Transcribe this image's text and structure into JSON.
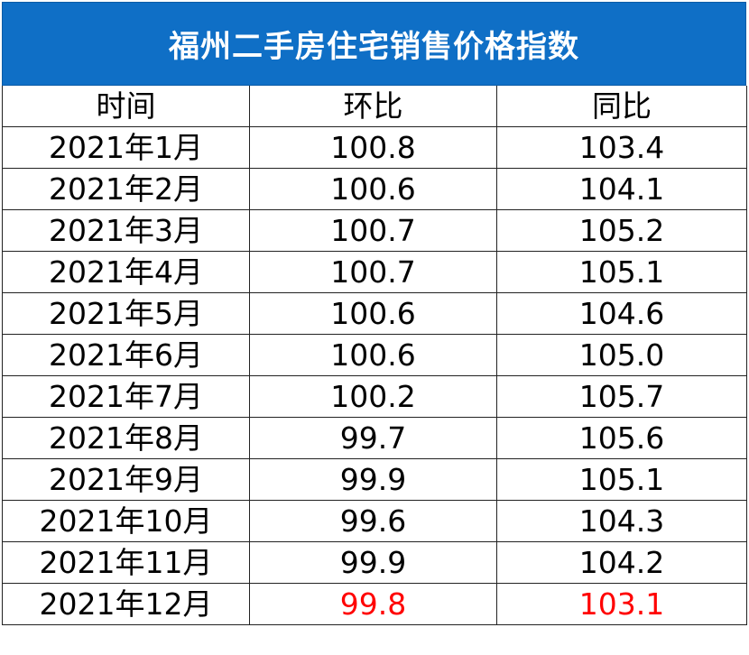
{
  "title": "福州二手房住宅销售价格指数",
  "colors": {
    "header_bg": "#0f6fc6",
    "highlight": "#ff0000"
  },
  "columns": [
    "时间",
    "环比",
    "同比"
  ],
  "rows": [
    {
      "time": "2021年1月",
      "mom": "100.8",
      "yoy": "103.4"
    },
    {
      "time": "2021年2月",
      "mom": "100.6",
      "yoy": "104.1"
    },
    {
      "time": "2021年3月",
      "mom": "100.7",
      "yoy": "105.2"
    },
    {
      "time": "2021年4月",
      "mom": "100.7",
      "yoy": "105.1"
    },
    {
      "time": "2021年5月",
      "mom": "100.6",
      "yoy": "104.6"
    },
    {
      "time": "2021年6月",
      "mom": "100.6",
      "yoy": "105.0"
    },
    {
      "time": "2021年7月",
      "mom": "100.2",
      "yoy": "105.7"
    },
    {
      "time": "2021年8月",
      "mom": "99.7",
      "yoy": "105.6"
    },
    {
      "time": "2021年9月",
      "mom": "99.9",
      "yoy": "105.1"
    },
    {
      "time": "2021年10月",
      "mom": "99.6",
      "yoy": "104.3"
    },
    {
      "time": "2021年11月",
      "mom": "99.9",
      "yoy": "104.2"
    },
    {
      "time": "2021年12月",
      "mom": "99.8",
      "yoy": "103.1",
      "highlight": true
    }
  ]
}
